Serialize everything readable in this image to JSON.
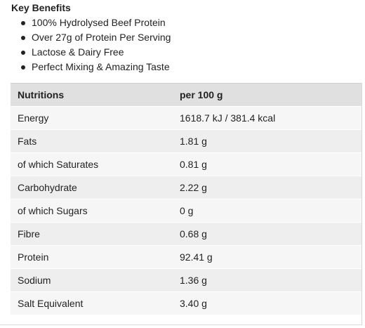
{
  "key_benefits": {
    "title": "Key Benefits",
    "items": [
      "100% Hydrolysed Beef Protein",
      "Over 27g of Protein Per Serving",
      "Lactose & Dairy Free",
      "Perfect Mixing & Amazing Taste"
    ]
  },
  "nutrition_table": {
    "headers": [
      "Nutritions",
      "per 100 g"
    ],
    "rows": [
      [
        "Energy",
        "1618.7 kJ / 381.4 kcal"
      ],
      [
        "Fats",
        "1.81 g"
      ],
      [
        "of which Saturates",
        "0.81 g"
      ],
      [
        "Carbohydrate",
        "2.22 g"
      ],
      [
        "of which Sugars",
        "0 g"
      ],
      [
        "Fibre",
        "0.68 g"
      ],
      [
        "Protein",
        "92.41 g"
      ],
      [
        "Sodium",
        "1.36 g"
      ],
      [
        "Salt Equivalent",
        "3.40 g"
      ]
    ]
  },
  "colors": {
    "header_bg": "#e0e0e0",
    "row_bg": "#eeeeee",
    "row_alt_bg": "#f6f6f6",
    "text": "#222222"
  }
}
